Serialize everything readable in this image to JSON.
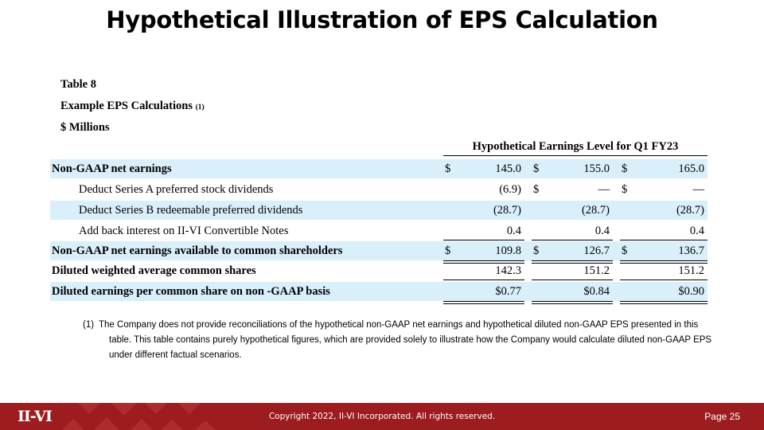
{
  "title": "Hypothetical Illustration of EPS Calculation",
  "table": {
    "number": "Table 8",
    "caption": "Example EPS Calculations",
    "caption_note": "(1)",
    "units": "$ Millions",
    "column_header": "Hypothetical Earnings Level for Q1 FY23",
    "rows": [
      {
        "label": "Non-GAAP net earnings",
        "cells": [
          {
            "d": "$",
            "v": "145.0"
          },
          {
            "d": "$",
            "v": "155.0"
          },
          {
            "d": "$",
            "v": "165.0"
          }
        ]
      },
      {
        "label": "Deduct Series A preferred stock dividends",
        "cells": [
          {
            "d": "",
            "v": "(6.9)"
          },
          {
            "d": "$",
            "v": "—"
          },
          {
            "d": "$",
            "v": "—"
          }
        ]
      },
      {
        "label": "Deduct Series B redeemable preferred dividends",
        "cells": [
          {
            "d": "",
            "v": "(28.7)"
          },
          {
            "d": "",
            "v": "(28.7)"
          },
          {
            "d": "",
            "v": "(28.7)"
          }
        ]
      },
      {
        "label": "Add back interest on II-VI Convertible Notes",
        "cells": [
          {
            "d": "",
            "v": "0.4"
          },
          {
            "d": "",
            "v": "0.4"
          },
          {
            "d": "",
            "v": "0.4"
          }
        ]
      },
      {
        "label": "Non-GAAP net earnings available to common shareholders",
        "cells": [
          {
            "d": "$",
            "v": "109.8"
          },
          {
            "d": "$",
            "v": "126.7"
          },
          {
            "d": "$",
            "v": "136.7"
          }
        ]
      },
      {
        "label": "Diluted weighted average common shares",
        "cells": [
          {
            "d": "",
            "v": "142.3"
          },
          {
            "d": "",
            "v": "151.2"
          },
          {
            "d": "",
            "v": "151.2"
          }
        ]
      },
      {
        "label": "Diluted earnings per common share on non -GAAP basis",
        "cells": [
          {
            "d": "",
            "v": "$0.77"
          },
          {
            "d": "",
            "v": "$0.84"
          },
          {
            "d": "",
            "v": "$0.90"
          }
        ]
      }
    ]
  },
  "footnote": {
    "marker": "(1)",
    "text": "The Company does not provide reconciliations of the hypothetical non-GAAP net earnings and hypothetical diluted non-GAAP EPS presented in this table.  This table contains purely hypothetical figures, which are provided solely to illustrate how the Company would calculate diluted non-GAAP EPS under different factual scenarios."
  },
  "footer": {
    "logo": "II-VI",
    "copyright": "Copyright 2022, II-VI Incorporated. All rights reserved.",
    "page": "Page 25",
    "color": "#9c1c20"
  },
  "colors": {
    "row_shade": "#d9effa"
  }
}
